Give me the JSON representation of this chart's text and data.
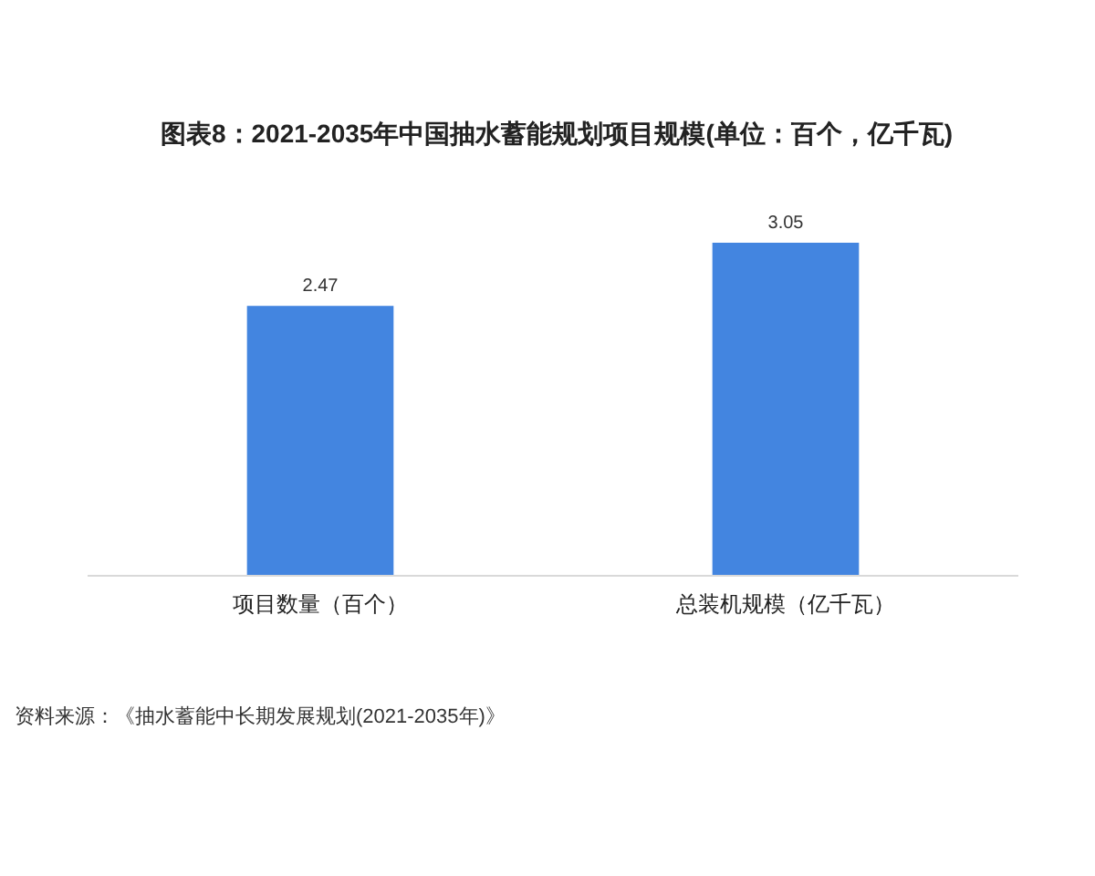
{
  "chart_data": {
    "type": "bar",
    "title": "图表8：2021-2035年中国抽水蓄能规划项目规模(单位：百个，亿千瓦)",
    "categories": [
      "项目数量（百个）",
      "总装机规模（亿千瓦）"
    ],
    "values": [
      2.47,
      3.05
    ],
    "color": "#4385e0",
    "data_labels": true,
    "annotations": [
      "资料来源：《抽水蓄能中长期发展规划(2021-2035年)》"
    ]
  }
}
